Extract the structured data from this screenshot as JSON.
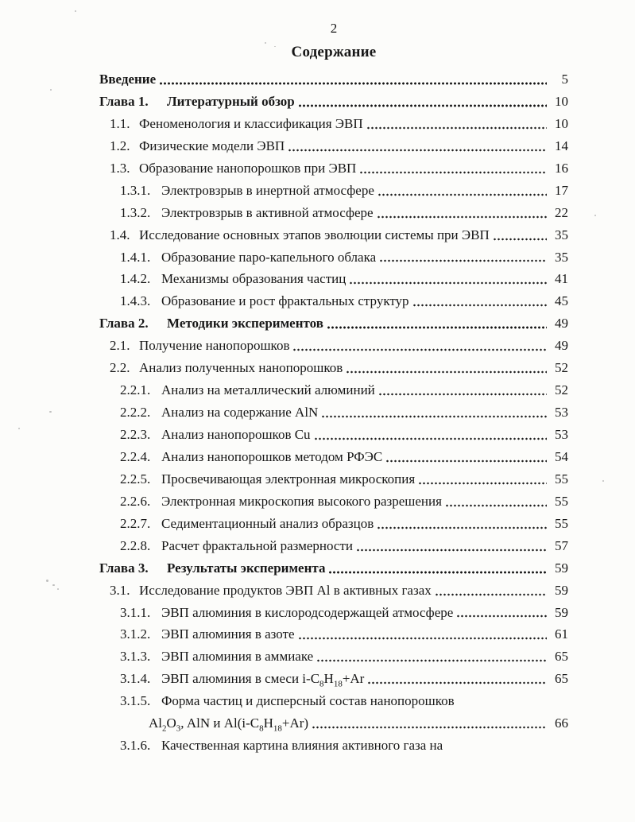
{
  "header": {
    "page_number": "2",
    "title": "Содержание"
  },
  "toc": {
    "entries": [
      {
        "num": "",
        "title": "Введение",
        "page": "5",
        "level": "chapter"
      },
      {
        "num": "Глава 1.",
        "title": "Литературный обзор",
        "page": "10",
        "level": "chapter"
      },
      {
        "num": "1.1.",
        "title": "Феноменология и классификация ЭВП",
        "page": "10",
        "level": "l1"
      },
      {
        "num": "1.2.",
        "title": "Физические модели ЭВП",
        "page": "14",
        "level": "l1"
      },
      {
        "num": "1.3.",
        "title": "Образование нанопорошков при ЭВП",
        "page": "16",
        "level": "l1"
      },
      {
        "num": "1.3.1.",
        "title": "Электровзрыв в инертной атмосфере",
        "page": "17",
        "level": "l2"
      },
      {
        "num": "1.3.2.",
        "title": "Электровзрыв в активной атмосфере",
        "page": "22",
        "level": "l2"
      },
      {
        "num": "1.4.",
        "title": "Исследование основных этапов эволюции системы при ЭВП",
        "page": "35",
        "level": "l1"
      },
      {
        "num": "1.4.1.",
        "title": "Образование паро-капельного облака",
        "page": "35",
        "level": "l2"
      },
      {
        "num": "1.4.2.",
        "title": "Механизмы образования частиц",
        "page": "41",
        "level": "l2"
      },
      {
        "num": "1.4.3.",
        "title": "Образование и рост фрактальных структур",
        "page": "45",
        "level": "l2"
      },
      {
        "num": "Глава 2.",
        "title": "Методики экспериментов",
        "page": "49",
        "level": "chapter"
      },
      {
        "num": "2.1.",
        "title": "Получение нанопорошков",
        "page": "49",
        "level": "l1"
      },
      {
        "num": "2.2.",
        "title": "Анализ полученных нанопорошков",
        "page": "52",
        "level": "l1"
      },
      {
        "num": "2.2.1.",
        "title": "Анализ на металлический алюминий",
        "page": "52",
        "level": "l2"
      },
      {
        "num": "2.2.2.",
        "title": "Анализ на содержание AlN",
        "page": "53",
        "level": "l2"
      },
      {
        "num": "2.2.3.",
        "title": "Анализ нанопорошков Cu",
        "page": "53",
        "level": "l2"
      },
      {
        "num": "2.2.4.",
        "title": "Анализ нанопорошков методом РФЭС",
        "page": "54",
        "level": "l2"
      },
      {
        "num": "2.2.5.",
        "title": "Просвечивающая электронная микроскопия",
        "page": "55",
        "level": "l2"
      },
      {
        "num": "2.2.6.",
        "title": "Электронная микроскопия высокого разрешения",
        "page": "55",
        "level": "l2"
      },
      {
        "num": "2.2.7.",
        "title": "Седиментационный анализ образцов",
        "page": "55",
        "level": "l2"
      },
      {
        "num": "2.2.8.",
        "title": "Расчет фрактальной размерности",
        "page": "57",
        "level": "l2"
      },
      {
        "num": "Глава 3.",
        "title": "Результаты эксперимента",
        "page": "59",
        "level": "chapter"
      },
      {
        "num": "3.1.",
        "title": "Исследование продуктов ЭВП Al в активных газах",
        "page": "59",
        "level": "l1"
      },
      {
        "num": "3.1.1.",
        "title": "ЭВП алюминия в кислородсодержащей атмосфере",
        "page": "59",
        "level": "l2"
      },
      {
        "num": "3.1.2.",
        "title": "ЭВП алюминия в азоте",
        "page": "61",
        "level": "l2"
      },
      {
        "num": "3.1.3.",
        "title": "ЭВП алюминия в аммиаке",
        "page": "65",
        "level": "l2"
      },
      {
        "num": "3.1.4.",
        "title_html": "ЭВП алюминия в смеси i-C<sub>8</sub>H<sub>18</sub>+Ar",
        "page": "65",
        "level": "l2"
      },
      {
        "num": "3.1.5.",
        "title": "Форма частиц и дисперсный состав нанопорошков",
        "page": "",
        "level": "l2"
      },
      {
        "num": "",
        "title_html": "Al<sub>2</sub>O<sub>3</sub>, AlN и Al(i-C<sub>8</sub>H<sub>18</sub>+Ar)",
        "page": "66",
        "level": "cont"
      },
      {
        "num": "3.1.6.",
        "title": "Качественная картина влияния активного газа на",
        "page": "",
        "level": "l2"
      }
    ]
  }
}
